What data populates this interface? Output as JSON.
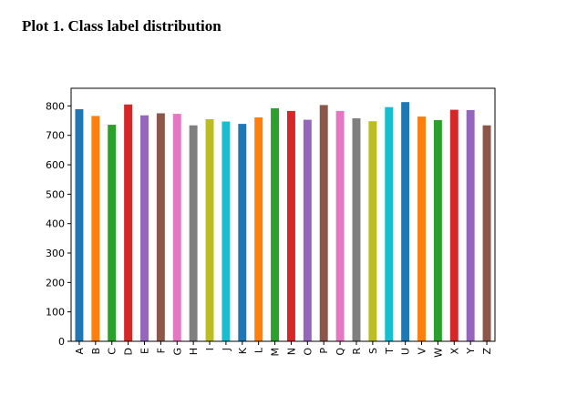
{
  "document": {
    "heading": "Plot 1. Class label distribution"
  },
  "chart_data": {
    "type": "bar",
    "title": "",
    "xlabel": "",
    "ylabel": "",
    "categories": [
      "A",
      "B",
      "C",
      "D",
      "E",
      "F",
      "G",
      "H",
      "I",
      "J",
      "K",
      "L",
      "M",
      "N",
      "O",
      "P",
      "Q",
      "R",
      "S",
      "T",
      "U",
      "V",
      "W",
      "X",
      "Y",
      "Z"
    ],
    "values": [
      789,
      766,
      736,
      805,
      768,
      775,
      773,
      734,
      755,
      747,
      739,
      761,
      792,
      783,
      753,
      803,
      783,
      758,
      748,
      796,
      813,
      764,
      752,
      787,
      786,
      734
    ],
    "colors": [
      "#1f77b4",
      "#ff7f0e",
      "#2ca02c",
      "#d62728",
      "#9467bd",
      "#8c564b",
      "#e377c2",
      "#7f7f7f",
      "#bcbd22",
      "#17becf"
    ],
    "ylim": [
      0,
      860
    ],
    "yticks": [
      0,
      100,
      200,
      300,
      400,
      500,
      600,
      700,
      800
    ],
    "grid": false,
    "legend": "none"
  }
}
